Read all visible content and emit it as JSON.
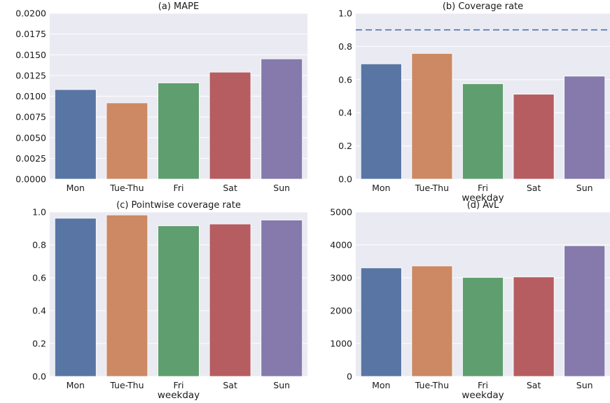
{
  "chart_data": [
    {
      "type": "bar",
      "title": "(a) MAPE",
      "xlabel": "",
      "ylabel": "",
      "categories": [
        "Mon",
        "Tue-Thu",
        "Fri",
        "Sat",
        "Sun"
      ],
      "values": [
        0.0108,
        0.0092,
        0.0116,
        0.0129,
        0.0145
      ],
      "ylim": [
        0,
        0.02
      ],
      "yticks": [
        "0.0000",
        "0.0025",
        "0.0050",
        "0.0075",
        "0.0100",
        "0.0125",
        "0.0150",
        "0.0175",
        "0.0200"
      ],
      "grid": true
    },
    {
      "type": "bar",
      "title": "(b) Coverage rate",
      "xlabel": "weekday",
      "ylabel": "",
      "categories": [
        "Mon",
        "Tue-Thu",
        "Fri",
        "Sat",
        "Sun"
      ],
      "values": [
        0.695,
        0.758,
        0.575,
        0.512,
        0.621
      ],
      "ylim": [
        0,
        1.0
      ],
      "yticks": [
        "0.0",
        "0.2",
        "0.4",
        "0.6",
        "0.8",
        "1.0"
      ],
      "reference_line": 0.9,
      "grid": true
    },
    {
      "type": "bar",
      "title": "(c) Pointwise coverage rate",
      "xlabel": "weekday",
      "ylabel": "",
      "categories": [
        "Mon",
        "Tue-Thu",
        "Fri",
        "Sat",
        "Sun"
      ],
      "values": [
        0.962,
        0.982,
        0.916,
        0.927,
        0.951
      ],
      "ylim": [
        0,
        1.0
      ],
      "yticks": [
        "0.0",
        "0.2",
        "0.4",
        "0.6",
        "0.8",
        "1.0"
      ],
      "grid": true
    },
    {
      "type": "bar",
      "title": "(d) AvL",
      "xlabel": "weekday",
      "ylabel": "",
      "categories": [
        "Mon",
        "Tue-Thu",
        "Fri",
        "Sat",
        "Sun"
      ],
      "values": [
        3300,
        3360,
        3010,
        3025,
        3975
      ],
      "ylim": [
        0,
        5000
      ],
      "yticks": [
        "0",
        "1000",
        "2000",
        "3000",
        "4000",
        "5000"
      ],
      "grid": true
    }
  ],
  "colors": {
    "bars": [
      "#5875a4",
      "#cc8963",
      "#5f9e6e",
      "#b55d60",
      "#857aab"
    ],
    "background": "#eaeaf2",
    "grid": "#ffffff",
    "reference_line": "#4c72b0"
  }
}
